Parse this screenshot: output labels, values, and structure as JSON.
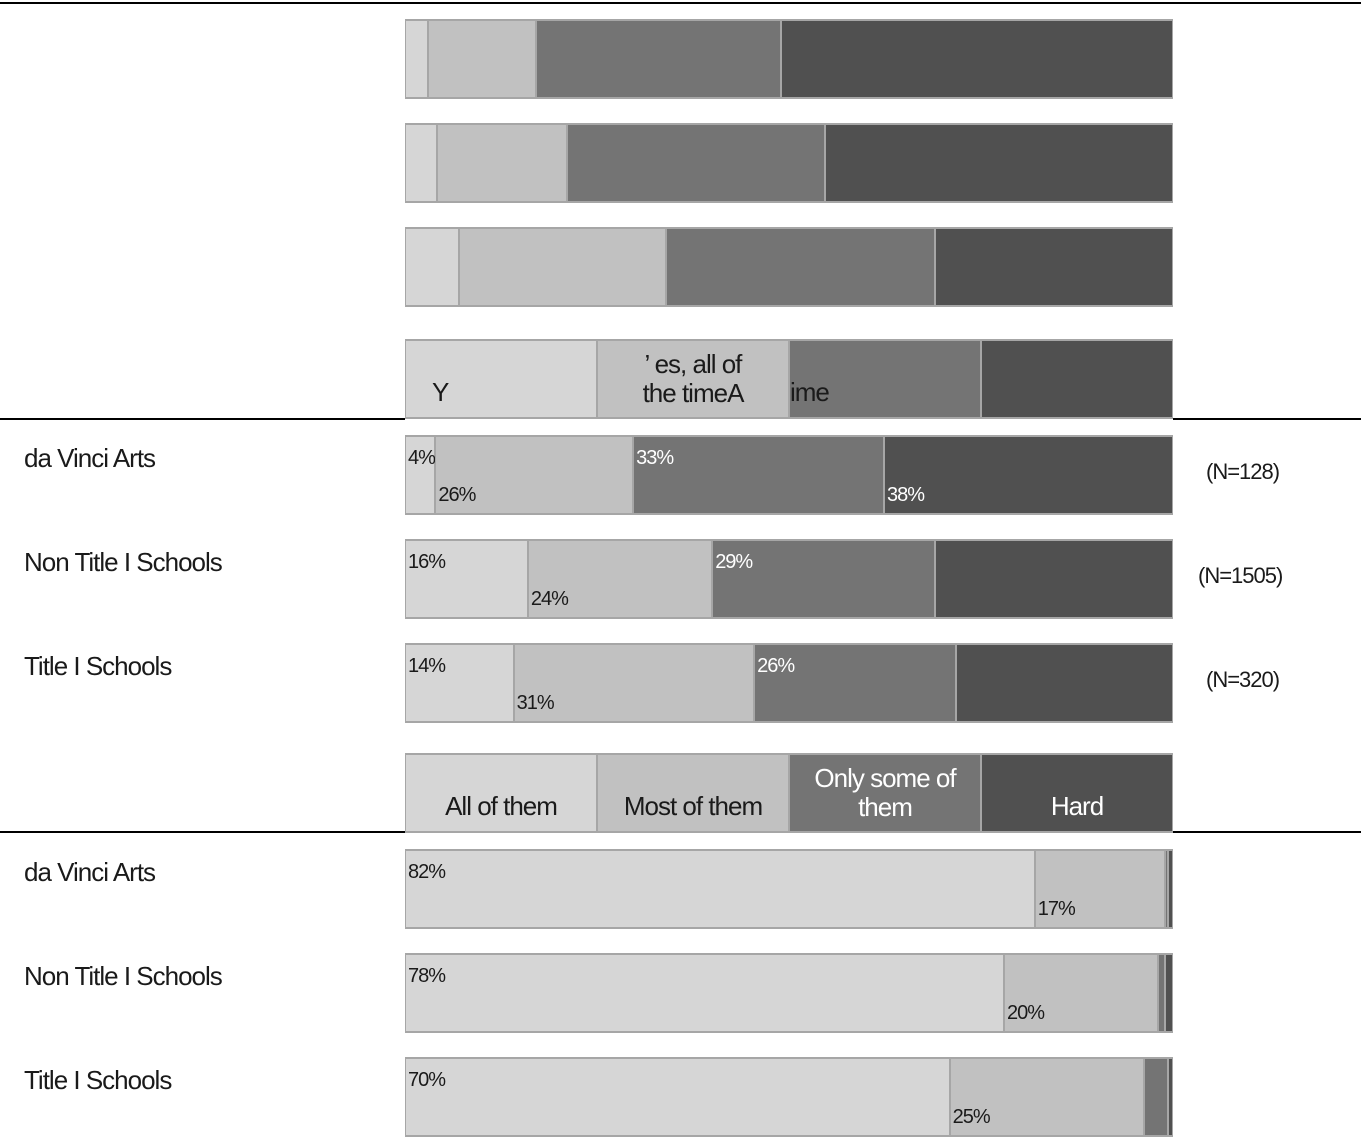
{
  "colors": {
    "c0": "#d6d6d6",
    "c1": "#c1c1c1",
    "c2": "#747474",
    "c3": "#505050"
  },
  "chart_data": [
    {
      "type": "bar",
      "orientation": "horizontal-stacked-100",
      "note": "Top chart; row labels cropped above image",
      "categories": [
        "",
        "",
        ""
      ],
      "series": [
        {
          "values": [
            3,
            4,
            7
          ]
        },
        {
          "values": [
            14,
            16,
            27
          ]
        },
        {
          "values": [
            32,
            32,
            35
          ]
        },
        {
          "values": [
            51,
            43,
            31
          ]
        }
      ]
    },
    {
      "type": "bar",
      "orientation": "horizontal-stacked-100",
      "categories": [
        "da Vinci Arts",
        "Non Title I Schools",
        "Title I Schools"
      ],
      "n_labels": [
        "(N=128)",
        "(N=1505)",
        "(N=320)"
      ],
      "series": [
        {
          "name": "All of them",
          "values": [
            4,
            16,
            14
          ]
        },
        {
          "name": "Most of them",
          "values": [
            26,
            24,
            31
          ]
        },
        {
          "name": "Only some of them",
          "values": [
            33,
            29,
            26
          ]
        },
        {
          "name": "Hard",
          "values": [
            38,
            31,
            28
          ]
        }
      ]
    },
    {
      "type": "bar",
      "orientation": "horizontal-stacked-100",
      "categories": [
        "da Vinci Arts",
        "Non Title I Schools",
        "Title I Schools"
      ],
      "series": [
        {
          "values": [
            82,
            78,
            70
          ]
        },
        {
          "values": [
            17,
            20,
            25
          ]
        },
        {
          "values": [
            0.3,
            1,
            3
          ]
        },
        {
          "values": [
            0.7,
            1,
            0.7
          ]
        }
      ]
    }
  ],
  "legend_top": {
    "items": [
      "Y",
      "’ es, all of\nthe timeA",
      "ime",
      ""
    ]
  },
  "legend_mid": {
    "items": [
      "All of them",
      "Most of them",
      "Only some of\nthem",
      "Hard"
    ]
  },
  "labels": {
    "mid": {
      "rows": [
        {
          "label": "da Vinci Arts",
          "n": "(N=128)",
          "pcts": [
            "4%",
            "26%",
            "33%",
            "38%"
          ]
        },
        {
          "label": "Non Title I Schools",
          "n": "(N=1505)",
          "pcts": [
            "16%",
            "24%",
            "29%",
            ""
          ]
        },
        {
          "label": "Title I Schools",
          "n": "(N=320)",
          "pcts": [
            "14%",
            "31%",
            "26%",
            ""
          ]
        }
      ]
    },
    "bottom": {
      "rows": [
        {
          "label": "da Vinci Arts",
          "pcts": [
            "82%",
            "17%",
            "",
            ""
          ]
        },
        {
          "label": "Non Title I Schools",
          "pcts": [
            "78%",
            "20%",
            "",
            ""
          ]
        },
        {
          "label": "Title I Schools",
          "pcts": [
            "70%",
            "25%",
            "",
            ""
          ]
        }
      ]
    }
  }
}
